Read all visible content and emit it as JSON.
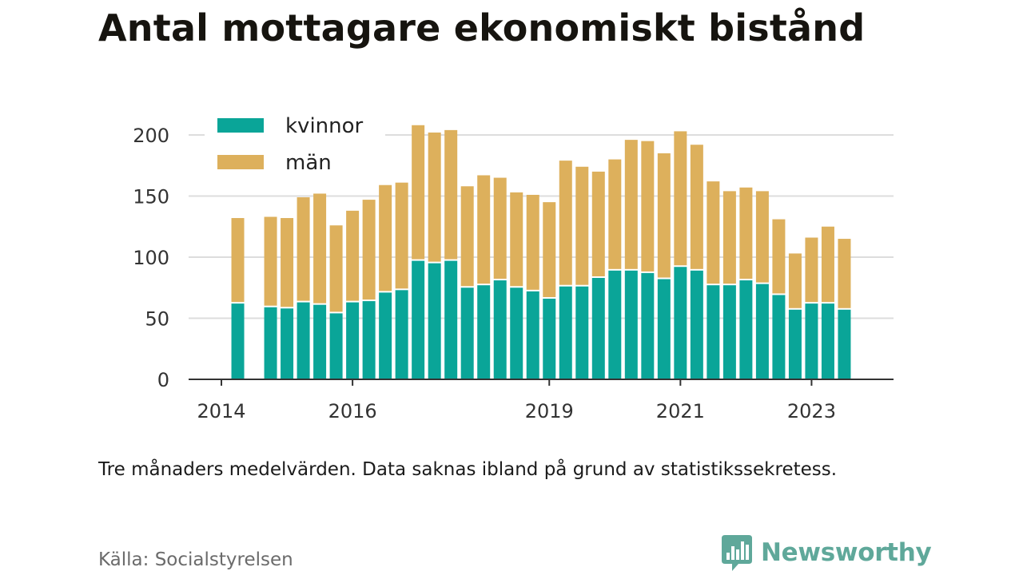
{
  "title": "Antal mottagare ekonomiskt bistånd",
  "note": "Tre månaders medelvärden. Data saknas ibland på grund av statistikssekretess.",
  "source": "Källa: Socialstyrelsen",
  "brand": {
    "name": "Newsworthy",
    "logo_icon": "bar-chart-bubble-icon"
  },
  "colors": {
    "kvinnor": "#0aa598",
    "man": "#ddb05c",
    "grid": "#dddddd",
    "axis": "#333333"
  },
  "chart_data": {
    "type": "bar",
    "stacked": true,
    "title": "Antal mottagare ekonomiskt bistånd",
    "xlabel": "",
    "ylabel": "",
    "ylim": [
      0,
      200
    ],
    "yticks": [
      0,
      50,
      100,
      150,
      200
    ],
    "grid": true,
    "legend_position": "top-left",
    "xtick_labels": [
      "2014",
      "2016",
      "2019",
      "2021",
      "2023"
    ],
    "xtick_positions": [
      2014.0,
      2016.0,
      2019.0,
      2021.0,
      2023.0
    ],
    "xlim": [
      2013.5,
      2024.25
    ],
    "x": [
      2014.25,
      2014.75,
      2015.0,
      2015.25,
      2015.5,
      2015.75,
      2016.0,
      2016.25,
      2016.5,
      2016.75,
      2017.0,
      2017.25,
      2017.5,
      2017.75,
      2018.0,
      2018.25,
      2018.5,
      2018.75,
      2019.0,
      2019.25,
      2019.5,
      2019.75,
      2020.0,
      2020.25,
      2020.5,
      2020.75,
      2021.0,
      2021.25,
      2021.5,
      2021.75,
      2022.0,
      2022.25,
      2022.5,
      2022.75,
      2023.0,
      2023.25,
      2023.5
    ],
    "series": [
      {
        "name": "kvinnor",
        "values": [
          62,
          59,
          58,
          63,
          61,
          54,
          63,
          64,
          71,
          73,
          97,
          95,
          97,
          75,
          77,
          81,
          75,
          72,
          66,
          76,
          76,
          83,
          89,
          89,
          87,
          82,
          92,
          89,
          77,
          77,
          81,
          78,
          69,
          57,
          62,
          62,
          57
        ]
      },
      {
        "name": "män",
        "values": [
          70,
          74,
          74,
          86,
          91,
          72,
          75,
          83,
          88,
          88,
          111,
          107,
          107,
          83,
          90,
          84,
          78,
          79,
          79,
          103,
          98,
          87,
          91,
          107,
          108,
          103,
          111,
          103,
          85,
          77,
          76,
          76,
          62,
          46,
          54,
          63,
          58
        ]
      }
    ]
  }
}
